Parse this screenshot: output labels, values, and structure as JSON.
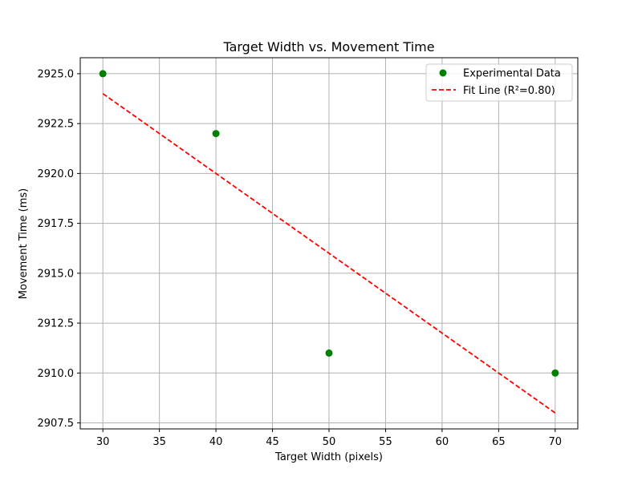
{
  "chart_data": {
    "type": "scatter",
    "title": "Target Width vs. Movement Time",
    "xlabel": "Target Width (pixels)",
    "ylabel": "Movement Time (ms)",
    "xlim": [
      28,
      72
    ],
    "ylim": [
      2907.2,
      2925.8
    ],
    "x_ticks": [
      30,
      35,
      40,
      45,
      50,
      55,
      60,
      65,
      70
    ],
    "x_tick_labels": [
      "30",
      "35",
      "40",
      "45",
      "50",
      "55",
      "60",
      "65",
      "70"
    ],
    "y_ticks": [
      2907.5,
      2910.0,
      2912.5,
      2915.0,
      2917.5,
      2920.0,
      2922.5,
      2925.0
    ],
    "y_tick_labels": [
      "2907.5",
      "2910.0",
      "2912.5",
      "2915.0",
      "2917.5",
      "2920.0",
      "2922.5",
      "2925.0"
    ],
    "grid": true,
    "legend_position": "top-right",
    "series": [
      {
        "name": "Experimental Data",
        "kind": "scatter",
        "color": "#008000",
        "points": [
          {
            "x": 30,
            "y": 2925
          },
          {
            "x": 40,
            "y": 2922
          },
          {
            "x": 50,
            "y": 2911
          },
          {
            "x": 70,
            "y": 2910
          }
        ]
      },
      {
        "name": "Fit Line (R²=0.80)",
        "kind": "line",
        "style": "dashed",
        "color": "#ff0000",
        "points": [
          {
            "x": 30,
            "y": 2924
          },
          {
            "x": 40,
            "y": 2920
          },
          {
            "x": 50,
            "y": 2916
          },
          {
            "x": 70,
            "y": 2908
          }
        ]
      }
    ]
  }
}
